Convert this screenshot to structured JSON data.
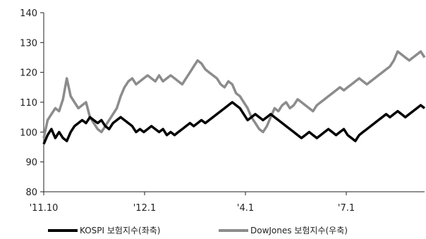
{
  "chart_data": {
    "type": "line",
    "y_ticks": [
      "140",
      "130",
      "120",
      "110",
      "100",
      "90",
      "80"
    ],
    "ylim": [
      80,
      140
    ],
    "x_ticks": [
      "'11.10",
      "'12.1",
      "'4.1",
      "'7.1"
    ],
    "grid": false,
    "legend_position": "bottom",
    "series": [
      {
        "name": "KOSPI 보험지수(좌축)",
        "color": "#000000",
        "values": [
          96,
          99,
          101,
          98,
          100,
          98,
          97,
          100,
          102,
          103,
          104,
          103,
          105,
          104,
          103,
          104,
          102,
          101,
          103,
          104,
          105,
          104,
          103,
          102,
          100,
          101,
          100,
          101,
          102,
          101,
          100,
          101,
          99,
          100,
          99,
          100,
          101,
          102,
          103,
          102,
          103,
          104,
          103,
          104,
          105,
          106,
          107,
          108,
          109,
          110,
          109,
          108,
          106,
          104,
          105,
          106,
          105,
          104,
          105,
          106,
          105,
          104,
          103,
          102,
          101,
          100,
          99,
          98,
          99,
          100,
          99,
          98,
          99,
          100,
          101,
          100,
          99,
          100,
          101,
          99,
          98,
          97,
          99,
          100,
          101,
          102,
          103,
          104,
          105,
          106,
          105,
          106,
          107,
          106,
          105,
          106,
          107,
          108,
          109,
          108
        ]
      },
      {
        "name": "DowJones 보험지수(우축)",
        "color": "#8c8c8c",
        "values": [
          98,
          104,
          106,
          108,
          107,
          111,
          118,
          112,
          110,
          108,
          109,
          110,
          105,
          103,
          101,
          100,
          102,
          104,
          106,
          108,
          112,
          115,
          117,
          118,
          116,
          117,
          118,
          119,
          118,
          117,
          119,
          117,
          118,
          119,
          118,
          117,
          116,
          118,
          120,
          122,
          124,
          123,
          121,
          120,
          119,
          118,
          116,
          115,
          117,
          116,
          113,
          112,
          110,
          108,
          105,
          103,
          101,
          100,
          102,
          105,
          108,
          107,
          109,
          110,
          108,
          109,
          111,
          110,
          109,
          108,
          107,
          109,
          110,
          111,
          112,
          113,
          114,
          115,
          114,
          115,
          116,
          117,
          118,
          117,
          116,
          117,
          118,
          119,
          120,
          121,
          122,
          124,
          127,
          126,
          125,
          124,
          125,
          126,
          127,
          125
        ]
      }
    ]
  }
}
